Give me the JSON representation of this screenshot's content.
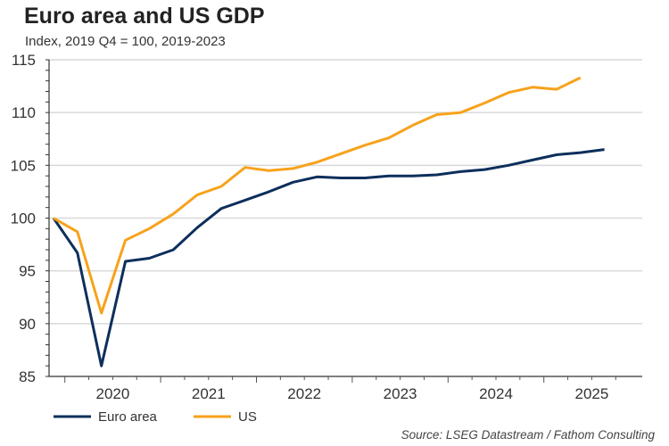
{
  "chart_data": {
    "type": "line",
    "title": "Euro area and US GDP",
    "subtitle": "Index, 2019 Q4 = 100, 2019-2023",
    "xlabel": "",
    "ylabel": "",
    "ylim": [
      85,
      115
    ],
    "yticks": [
      "85",
      "90",
      "95",
      "100",
      "105",
      "110",
      "115"
    ],
    "ytick_values": [
      85,
      90,
      95,
      100,
      105,
      110,
      115
    ],
    "x_start_quarter": "2019Q4",
    "x": [
      "2019Q4",
      "2020Q1",
      "2020Q2",
      "2020Q3",
      "2020Q4",
      "2021Q1",
      "2021Q2",
      "2021Q3",
      "2021Q4",
      "2022Q1",
      "2022Q2",
      "2022Q3",
      "2022Q4",
      "2023Q1",
      "2023Q2",
      "2023Q3",
      "2023Q4",
      "2024Q1",
      "2024Q2",
      "2024Q3",
      "2024Q4",
      "2025Q1",
      "2025Q2",
      "2025Q3"
    ],
    "xtick_labels": [
      "2020",
      "2021",
      "2022",
      "2023",
      "2024",
      "2025"
    ],
    "grid": true,
    "legend_position": "bottom-left",
    "series": [
      {
        "name": "Euro area",
        "color": "#0d2f5c",
        "values": [
          100,
          96.7,
          86.0,
          95.9,
          96.2,
          97.0,
          99.1,
          100.9,
          101.7,
          102.5,
          103.4,
          103.9,
          103.8,
          103.8,
          104.0,
          104.0,
          104.1,
          104.4,
          104.6,
          105.0,
          105.5,
          106.0,
          106.2,
          106.5
        ]
      },
      {
        "name": "US",
        "color": "#f7a21b",
        "values": [
          100,
          98.7,
          91.0,
          97.9,
          99.0,
          100.4,
          102.2,
          103.0,
          104.8,
          104.5,
          104.7,
          105.3,
          106.1,
          106.9,
          107.6,
          108.8,
          109.8,
          110.0,
          110.9,
          111.9,
          112.4,
          112.2,
          113.3,
          null
        ]
      }
    ],
    "source": "Source: LSEG Datastream / Fathom Consulting"
  }
}
